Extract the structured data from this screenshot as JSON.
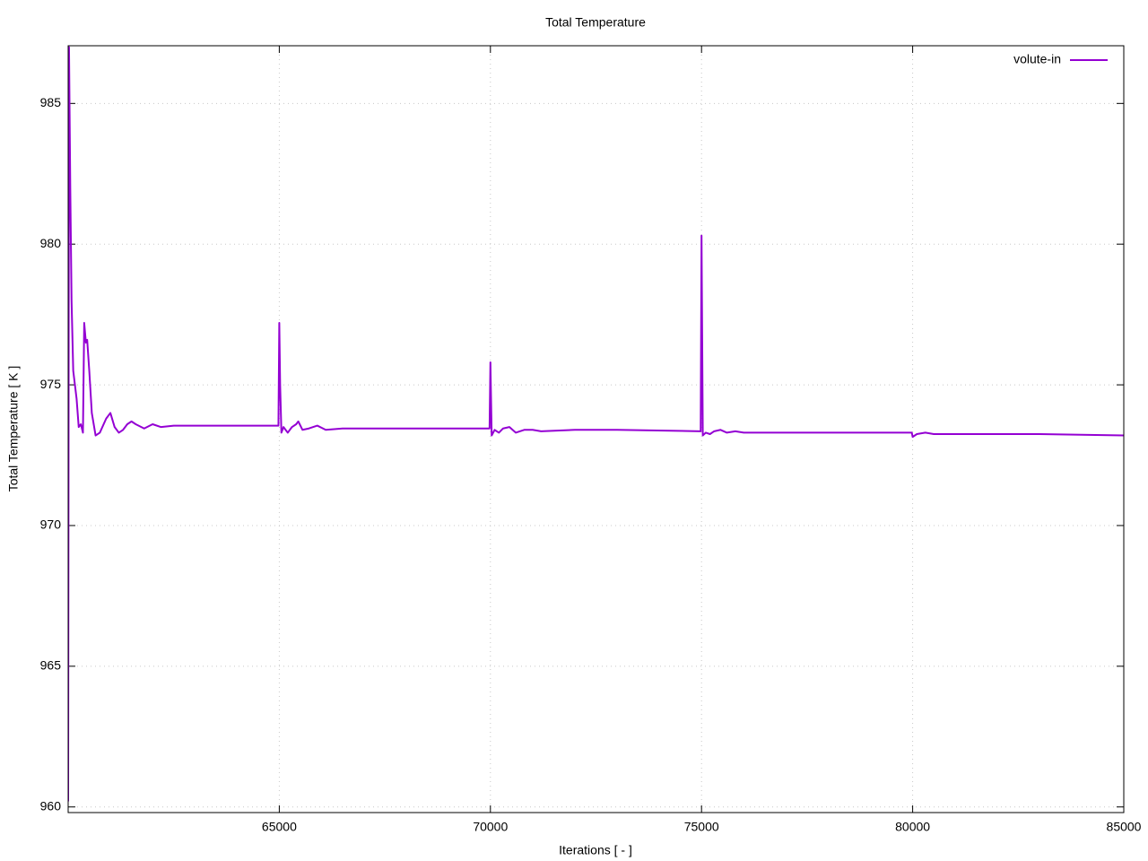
{
  "chart_data": {
    "type": "line",
    "title": "Total Temperature",
    "xlabel": "Iterations [ - ]",
    "ylabel": "Total Temperature [ K ]",
    "xlim": [
      60000,
      85000
    ],
    "ylim": [
      959.8,
      987.05
    ],
    "xticks": [
      65000,
      70000,
      75000,
      80000,
      85000
    ],
    "yticks": [
      960,
      965,
      970,
      975,
      980,
      985
    ],
    "grid": true,
    "legend": "top-right",
    "x": [
      60000,
      60020,
      60050,
      60080,
      60120,
      60200,
      60250,
      60300,
      60350,
      60380,
      60420,
      60450,
      60500,
      60560,
      60650,
      60750,
      60900,
      61000,
      61100,
      61200,
      61300,
      61400,
      61500,
      61600,
      61800,
      62000,
      62200,
      62500,
      63000,
      64000,
      64980,
      65000,
      65020,
      65050,
      65100,
      65200,
      65300,
      65400,
      65450,
      65550,
      65700,
      65900,
      66100,
      66500,
      67000,
      68000,
      69980,
      70000,
      70030,
      70100,
      70200,
      70300,
      70450,
      70600,
      70800,
      71000,
      71200,
      72000,
      73000,
      74980,
      75000,
      75030,
      75100,
      75200,
      75300,
      75450,
      75600,
      75800,
      76000,
      77000,
      79000,
      79980,
      80000,
      80100,
      80300,
      80500,
      81000,
      83000,
      85000
    ],
    "series": [
      {
        "name": "volute-in",
        "color": "#9400d3",
        "values": [
          960.2,
          987.0,
          982,
          978,
          975.5,
          974.5,
          973.5,
          973.6,
          973.3,
          977.2,
          976.5,
          976.6,
          975.5,
          974.0,
          973.2,
          973.3,
          973.8,
          974.0,
          973.5,
          973.3,
          973.4,
          973.6,
          973.7,
          973.6,
          973.45,
          973.6,
          973.5,
          973.55,
          973.55,
          973.55,
          973.55,
          977.2,
          975,
          973.3,
          973.5,
          973.3,
          973.5,
          973.6,
          973.7,
          973.4,
          973.45,
          973.55,
          973.4,
          973.45,
          973.45,
          973.45,
          973.45,
          975.8,
          973.2,
          973.4,
          973.3,
          973.45,
          973.5,
          973.3,
          973.4,
          973.4,
          973.35,
          973.4,
          973.4,
          973.35,
          980.3,
          973.2,
          973.3,
          973.25,
          973.35,
          973.4,
          973.3,
          973.35,
          973.3,
          973.3,
          973.3,
          973.3,
          973.15,
          973.25,
          973.3,
          973.25,
          973.25,
          973.25,
          973.2
        ]
      }
    ]
  }
}
